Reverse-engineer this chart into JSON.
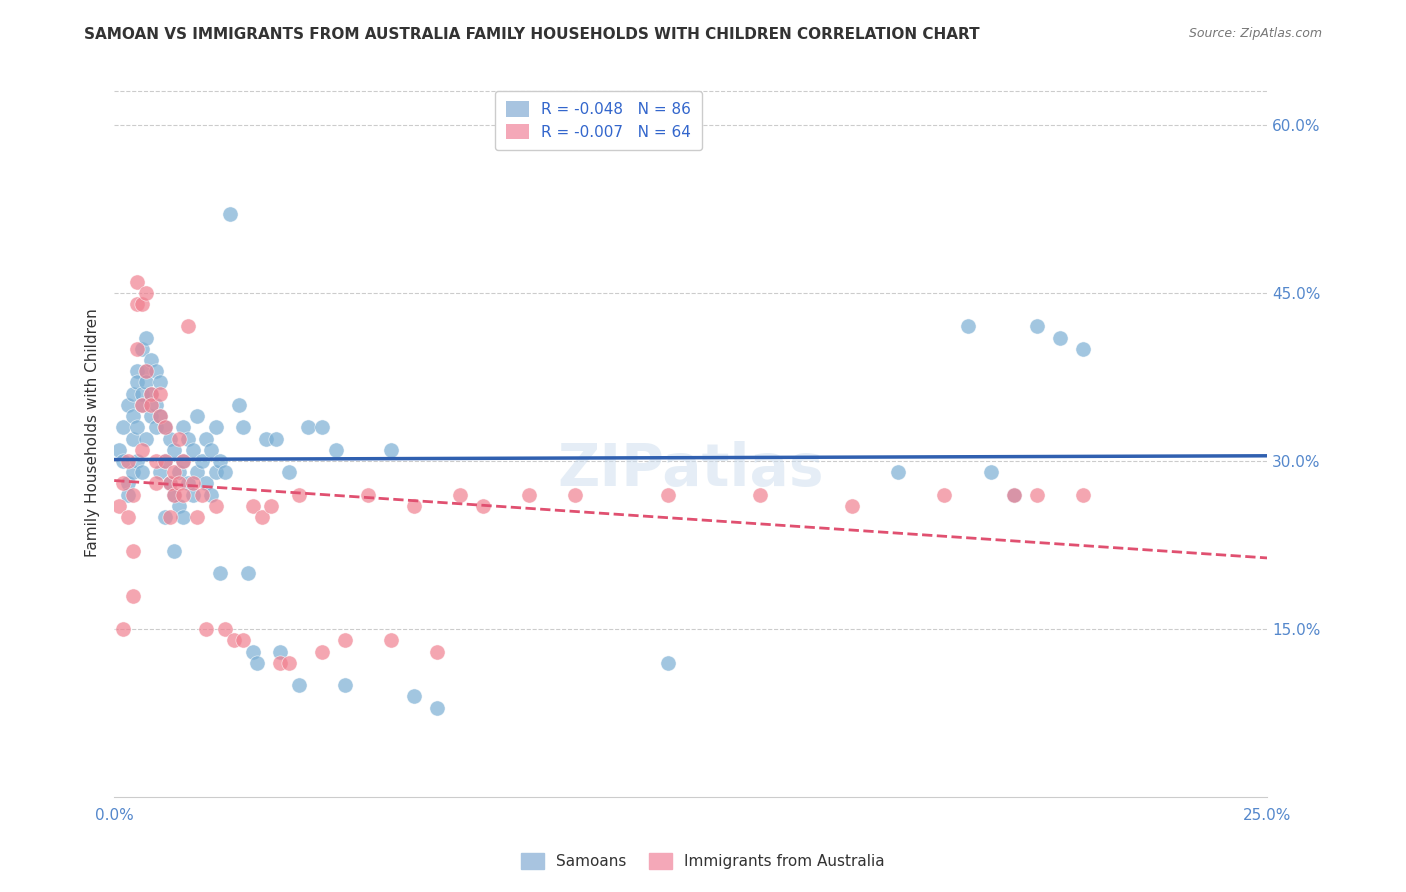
{
  "title": "SAMOAN VS IMMIGRANTS FROM AUSTRALIA FAMILY HOUSEHOLDS WITH CHILDREN CORRELATION CHART",
  "source": "Source: ZipAtlas.com",
  "xlabel_bottom": "",
  "ylabel": "Family Households with Children",
  "x_min": 0.0,
  "x_max": 0.25,
  "y_min": 0.0,
  "y_max": 0.65,
  "x_ticks": [
    0.0,
    0.05,
    0.1,
    0.15,
    0.2,
    0.25
  ],
  "x_tick_labels": [
    "0.0%",
    "",
    "",
    "",
    "",
    "25.0%"
  ],
  "y_ticks_right": [
    0.15,
    0.3,
    0.45,
    0.6
  ],
  "y_tick_labels_right": [
    "15.0%",
    "30.0%",
    "45.0%",
    "60.0%"
  ],
  "watermark": "ZIPatlas",
  "legend_entries": [
    {
      "label": "R = -0.048   N = 86",
      "color": "#a8c4e0"
    },
    {
      "label": "R = -0.007   N = 64",
      "color": "#f4a8b8"
    }
  ],
  "legend_bottom": [
    {
      "label": "Samoans",
      "color": "#a8c4e0"
    },
    {
      "label": "Immigrants from Australia",
      "color": "#f4a8b8"
    }
  ],
  "blue_color": "#7bafd4",
  "pink_color": "#f08090",
  "blue_line_color": "#3060b0",
  "pink_line_color": "#e05070",
  "samoan_R": -0.048,
  "samoan_N": 86,
  "australia_R": -0.007,
  "australia_N": 64,
  "samoan_x": [
    0.001,
    0.002,
    0.002,
    0.003,
    0.003,
    0.003,
    0.004,
    0.004,
    0.004,
    0.004,
    0.005,
    0.005,
    0.005,
    0.005,
    0.006,
    0.006,
    0.006,
    0.006,
    0.007,
    0.007,
    0.007,
    0.007,
    0.008,
    0.008,
    0.008,
    0.009,
    0.009,
    0.009,
    0.01,
    0.01,
    0.01,
    0.011,
    0.011,
    0.011,
    0.012,
    0.012,
    0.013,
    0.013,
    0.013,
    0.014,
    0.014,
    0.015,
    0.015,
    0.015,
    0.016,
    0.016,
    0.017,
    0.017,
    0.018,
    0.018,
    0.019,
    0.02,
    0.02,
    0.021,
    0.021,
    0.022,
    0.022,
    0.023,
    0.023,
    0.024,
    0.025,
    0.027,
    0.028,
    0.029,
    0.03,
    0.031,
    0.033,
    0.035,
    0.036,
    0.038,
    0.04,
    0.042,
    0.045,
    0.048,
    0.05,
    0.06,
    0.065,
    0.07,
    0.12,
    0.19,
    0.2,
    0.205,
    0.21,
    0.195,
    0.185,
    0.17
  ],
  "samoan_y": [
    0.31,
    0.3,
    0.33,
    0.35,
    0.28,
    0.27,
    0.34,
    0.36,
    0.32,
    0.29,
    0.38,
    0.37,
    0.33,
    0.3,
    0.36,
    0.4,
    0.35,
    0.29,
    0.41,
    0.38,
    0.37,
    0.32,
    0.39,
    0.36,
    0.34,
    0.38,
    0.35,
    0.33,
    0.34,
    0.37,
    0.29,
    0.3,
    0.33,
    0.25,
    0.28,
    0.32,
    0.31,
    0.27,
    0.22,
    0.29,
    0.26,
    0.33,
    0.3,
    0.25,
    0.32,
    0.28,
    0.31,
    0.27,
    0.29,
    0.34,
    0.3,
    0.28,
    0.32,
    0.27,
    0.31,
    0.29,
    0.33,
    0.3,
    0.2,
    0.29,
    0.52,
    0.35,
    0.33,
    0.2,
    0.13,
    0.12,
    0.32,
    0.32,
    0.13,
    0.29,
    0.1,
    0.33,
    0.33,
    0.31,
    0.1,
    0.31,
    0.09,
    0.08,
    0.12,
    0.29,
    0.42,
    0.41,
    0.4,
    0.27,
    0.42,
    0.29
  ],
  "australia_x": [
    0.001,
    0.002,
    0.002,
    0.003,
    0.003,
    0.004,
    0.004,
    0.004,
    0.005,
    0.005,
    0.005,
    0.006,
    0.006,
    0.006,
    0.007,
    0.007,
    0.008,
    0.008,
    0.009,
    0.009,
    0.01,
    0.01,
    0.011,
    0.011,
    0.012,
    0.012,
    0.013,
    0.013,
    0.014,
    0.014,
    0.015,
    0.015,
    0.016,
    0.017,
    0.018,
    0.019,
    0.02,
    0.022,
    0.024,
    0.026,
    0.028,
    0.03,
    0.032,
    0.034,
    0.036,
    0.038,
    0.04,
    0.045,
    0.05,
    0.055,
    0.06,
    0.065,
    0.07,
    0.075,
    0.08,
    0.09,
    0.1,
    0.12,
    0.14,
    0.16,
    0.18,
    0.195,
    0.2,
    0.21
  ],
  "australia_y": [
    0.26,
    0.28,
    0.15,
    0.3,
    0.25,
    0.27,
    0.22,
    0.18,
    0.46,
    0.44,
    0.4,
    0.35,
    0.31,
    0.44,
    0.45,
    0.38,
    0.36,
    0.35,
    0.3,
    0.28,
    0.36,
    0.34,
    0.33,
    0.3,
    0.28,
    0.25,
    0.27,
    0.29,
    0.32,
    0.28,
    0.3,
    0.27,
    0.42,
    0.28,
    0.25,
    0.27,
    0.15,
    0.26,
    0.15,
    0.14,
    0.14,
    0.26,
    0.25,
    0.26,
    0.12,
    0.12,
    0.27,
    0.13,
    0.14,
    0.27,
    0.14,
    0.26,
    0.13,
    0.27,
    0.26,
    0.27,
    0.27,
    0.27,
    0.27,
    0.26,
    0.27,
    0.27,
    0.27,
    0.27
  ]
}
